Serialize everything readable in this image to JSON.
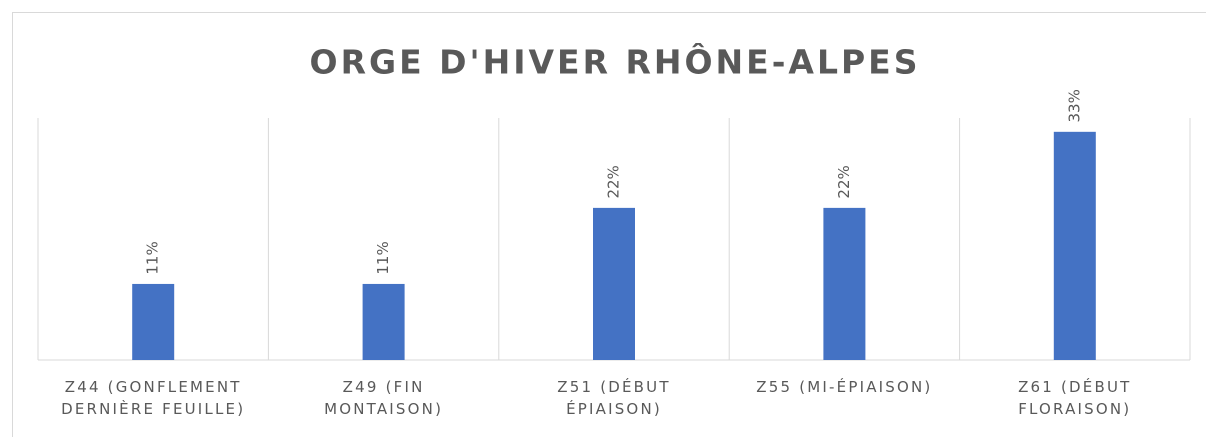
{
  "chart_data": {
    "type": "bar",
    "title": "ORGE D'HIVER RHÔNE-ALPES",
    "categories": [
      "Z44 (GONFLEMENT\nDERNIÈRE FEUILLE)",
      "Z49 (FIN\nMONTAISON)",
      "Z51 (DÉBUT\nÉPIAISON)",
      "Z55 (MI-ÉPIAISON)",
      "Z61 (DÉBUT\nFLORAISON)"
    ],
    "values": [
      11,
      11,
      22,
      22,
      33
    ],
    "value_labels": [
      "11%",
      "11%",
      "22%",
      "22%",
      "33%"
    ],
    "color": "#4472c4",
    "ylim": [
      0,
      35
    ]
  }
}
